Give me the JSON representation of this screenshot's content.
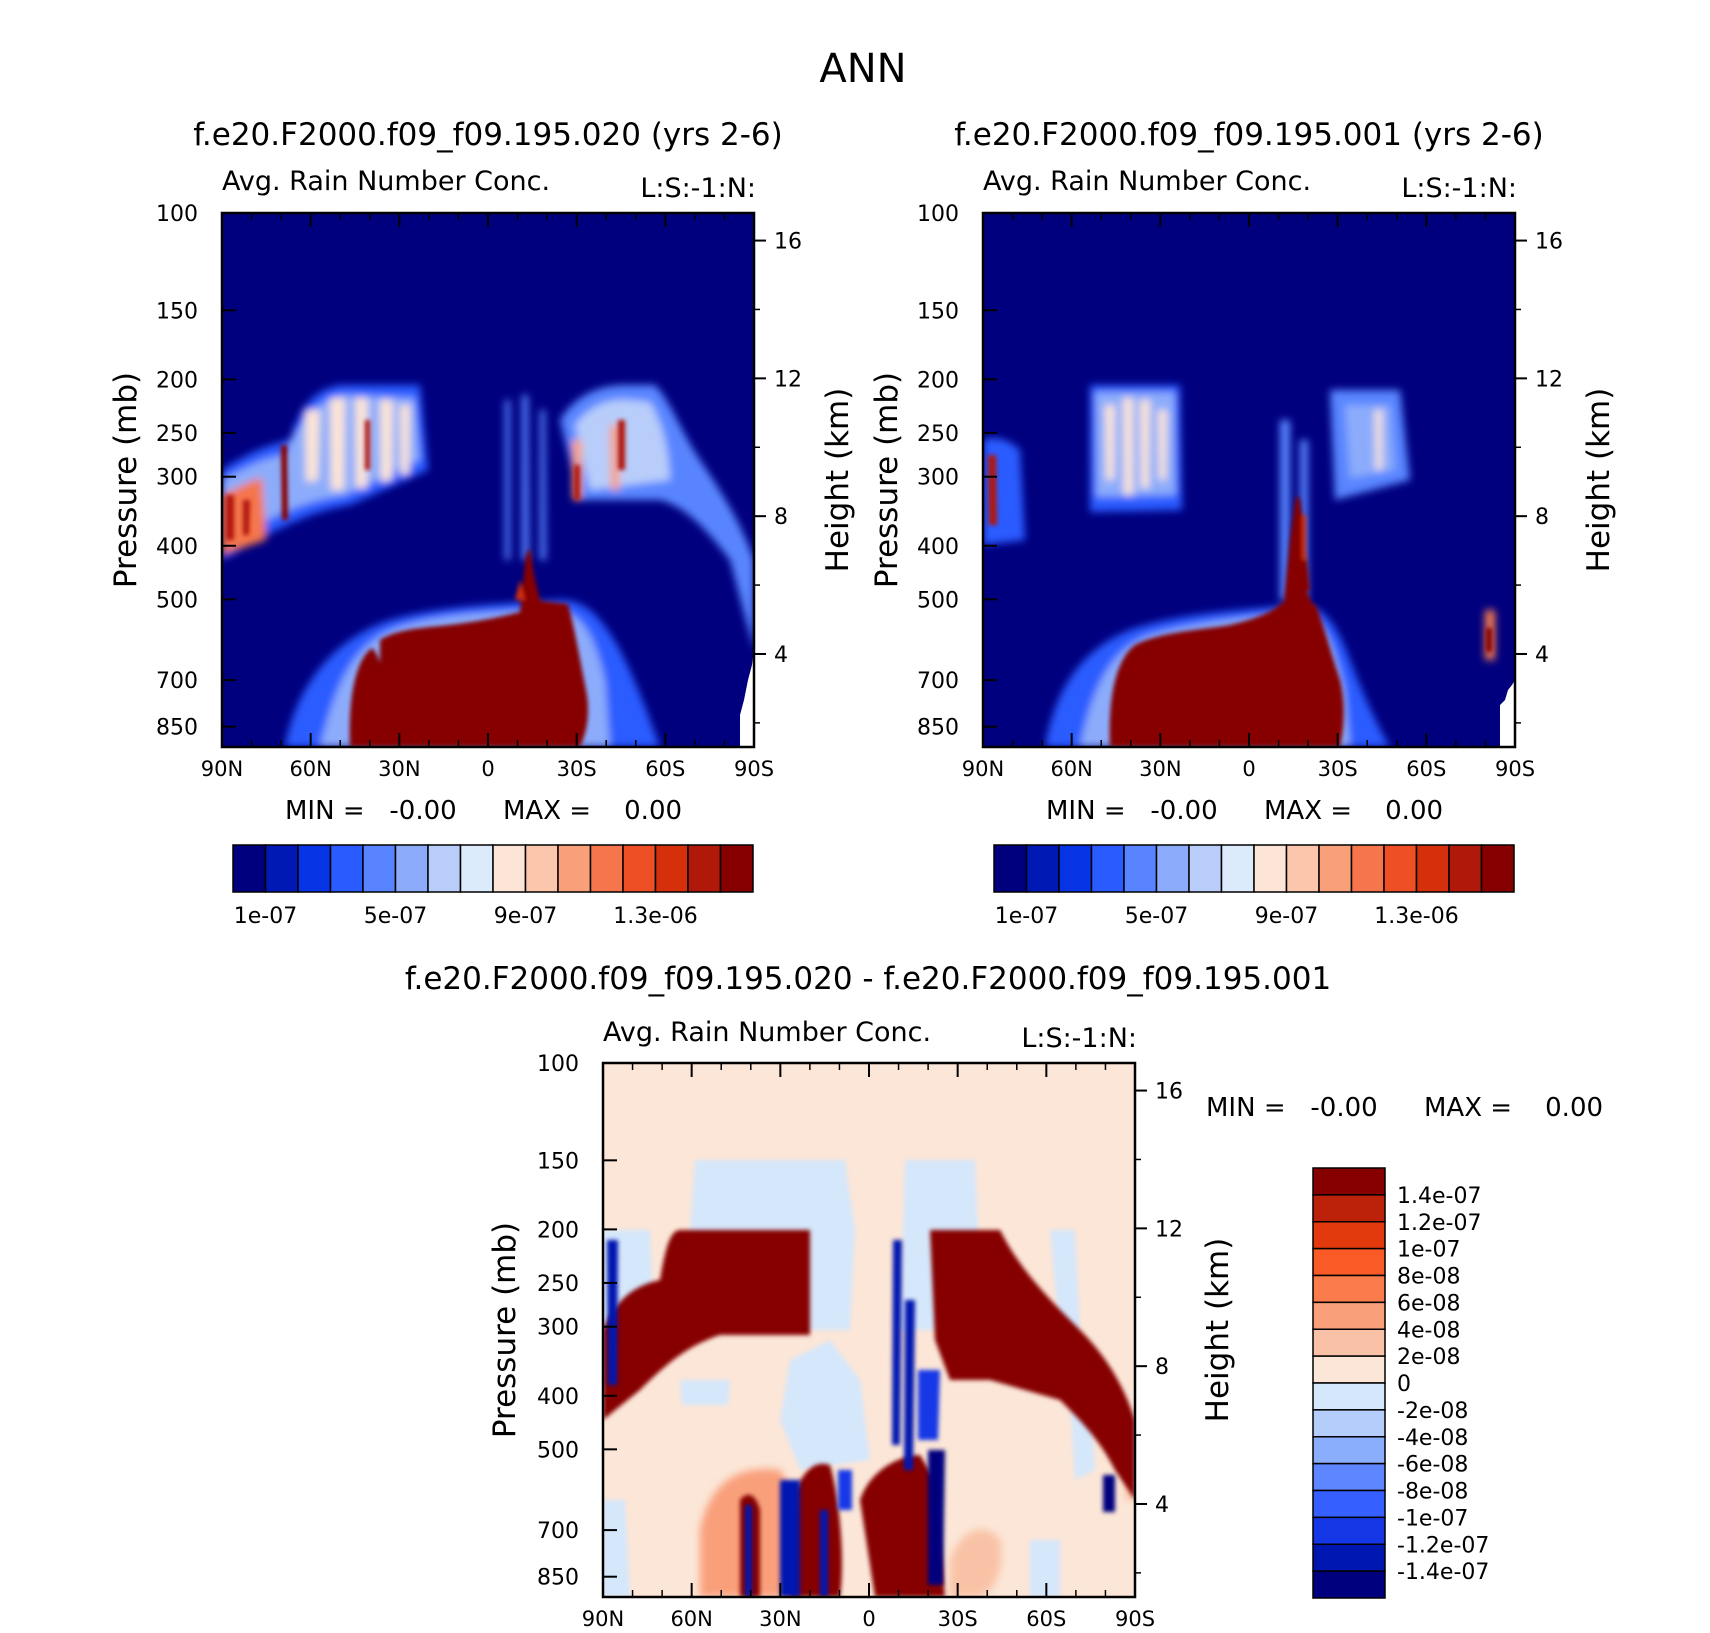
{
  "figure": {
    "title": "ANN"
  },
  "chart_data": [
    {
      "type": "heatmap",
      "title": "f.e20.F2000.f09_f09.195.020 (yrs 2-6)",
      "subtitle": "Avg. Rain Number Conc.",
      "level_label": "L:S:-1:N:",
      "ylabel": "Pressure (mb)",
      "ylabel2": "Height (km)",
      "x_ticks": [
        "90N",
        "60N",
        "30N",
        "0",
        "30S",
        "60S",
        "90S"
      ],
      "x_values": [
        90,
        60,
        30,
        0,
        -30,
        -60,
        -90
      ],
      "y_ticks": [
        "100",
        "150",
        "200",
        "250",
        "300",
        "400",
        "500",
        "700",
        "850"
      ],
      "y_values": [
        100,
        150,
        200,
        250,
        300,
        400,
        500,
        700,
        850
      ],
      "y_range": [
        100,
        925
      ],
      "y2_ticks": [
        "16",
        "12",
        "8",
        "4"
      ],
      "y2_values": [
        16,
        12,
        8,
        4
      ],
      "min_text": "MIN =   -0.00",
      "max_text": "MAX =    0.00",
      "colorbar_labels": [
        "1e-07",
        "5e-07",
        "9e-07",
        "1.3e-06"
      ],
      "levels": [
        1e-07,
        2e-07,
        3e-07,
        4e-07,
        5e-07,
        6e-07,
        7e-07,
        8e-07,
        9e-07,
        1e-06,
        1.1e-06,
        1.2e-06,
        1.3e-06,
        1.4e-06,
        1.5e-06
      ]
    },
    {
      "type": "heatmap",
      "title": "f.e20.F2000.f09_f09.195.001 (yrs 2-6)",
      "subtitle": "Avg. Rain Number Conc.",
      "level_label": "L:S:-1:N:",
      "ylabel": "Pressure (mb)",
      "ylabel2": "Height (km)",
      "x_ticks": [
        "90N",
        "60N",
        "30N",
        "0",
        "30S",
        "60S",
        "90S"
      ],
      "x_values": [
        90,
        60,
        30,
        0,
        -30,
        -60,
        -90
      ],
      "y_ticks": [
        "100",
        "150",
        "200",
        "250",
        "300",
        "400",
        "500",
        "700",
        "850"
      ],
      "y_values": [
        100,
        150,
        200,
        250,
        300,
        400,
        500,
        700,
        850
      ],
      "y_range": [
        100,
        925
      ],
      "y2_ticks": [
        "16",
        "12",
        "8",
        "4"
      ],
      "y2_values": [
        16,
        12,
        8,
        4
      ],
      "min_text": "MIN =   -0.00",
      "max_text": "MAX =    0.00",
      "colorbar_labels": [
        "1e-07",
        "5e-07",
        "9e-07",
        "1.3e-06"
      ],
      "levels": [
        1e-07,
        2e-07,
        3e-07,
        4e-07,
        5e-07,
        6e-07,
        7e-07,
        8e-07,
        9e-07,
        1e-06,
        1.1e-06,
        1.2e-06,
        1.3e-06,
        1.4e-06,
        1.5e-06
      ]
    },
    {
      "type": "heatmap",
      "title": "f.e20.F2000.f09_f09.195.020 - f.e20.F2000.f09_f09.195.001",
      "subtitle": "Avg. Rain Number Conc.",
      "level_label": "L:S:-1:N:",
      "ylabel": "Pressure (mb)",
      "ylabel2": "Height (km)",
      "x_ticks": [
        "90N",
        "60N",
        "30N",
        "0",
        "30S",
        "60S",
        "90S"
      ],
      "x_values": [
        90,
        60,
        30,
        0,
        -30,
        -60,
        -90
      ],
      "y_ticks": [
        "100",
        "150",
        "200",
        "250",
        "300",
        "400",
        "500",
        "700",
        "850"
      ],
      "y_values": [
        100,
        150,
        200,
        250,
        300,
        400,
        500,
        700,
        850
      ],
      "y_range": [
        100,
        925
      ],
      "y2_ticks": [
        "16",
        "12",
        "8",
        "4"
      ],
      "y2_values": [
        16,
        12,
        8,
        4
      ],
      "min_text": "MIN =   -0.00",
      "max_text": "MAX =    0.00",
      "colorbar_labels": [
        "1.4e-07",
        "1.2e-07",
        "1e-07",
        "8e-08",
        "6e-08",
        "4e-08",
        "2e-08",
        "0",
        "-2e-08",
        "-4e-08",
        "-6e-08",
        "-8e-08",
        "-1e-07",
        "-1.2e-07",
        "-1.4e-07"
      ],
      "levels": [
        1.4e-07,
        1.2e-07,
        1e-07,
        8e-08,
        6e-08,
        4e-08,
        2e-08,
        0,
        -2e-08,
        -4e-08,
        -6e-08,
        -8e-08,
        -1e-07,
        -1.2e-07,
        -1.4e-07
      ]
    }
  ],
  "palettes": {
    "abs": [
      "#00007f",
      "#0019b4",
      "#0735e6",
      "#2a5bff",
      "#5885ff",
      "#8cacfb",
      "#b8cdfa",
      "#dcebfb",
      "#fce5d6",
      "#fbc6ab",
      "#f99f7a",
      "#f5764c",
      "#ee4f24",
      "#d52f0b",
      "#b0180a",
      "#860000"
    ],
    "diff": [
      "#860000",
      "#bc220a",
      "#e23a0c",
      "#fa5a25",
      "#fa7c4d",
      "#f9a07a",
      "#f9c2a6",
      "#fce6d7",
      "#d5e7fb",
      "#b4cdfb",
      "#8aaefc",
      "#5e87ff",
      "#3560ff",
      "#1537e6",
      "#0016b0",
      "#00007f"
    ]
  }
}
